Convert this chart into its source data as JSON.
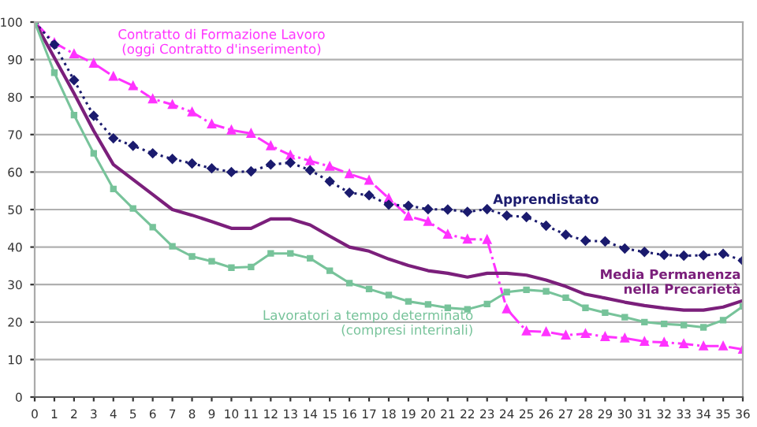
{
  "chart_data": {
    "type": "line",
    "x": [
      0,
      1,
      2,
      3,
      4,
      5,
      6,
      7,
      8,
      9,
      10,
      11,
      12,
      13,
      14,
      15,
      16,
      17,
      18,
      19,
      20,
      21,
      22,
      23,
      24,
      25,
      26,
      27,
      28,
      29,
      30,
      31,
      32,
      33,
      34,
      35,
      36
    ],
    "series": [
      {
        "name": "Contratto di Formazione Lavoro\n(oggi Contratto d'inserimento)",
        "color": "#ff33ff",
        "marker": "triangle",
        "line_style": "dashed",
        "values": [
          100,
          94.5,
          91.5,
          89,
          85.5,
          83,
          79.5,
          78,
          76,
          72.8,
          71.2,
          70.3,
          67,
          64.5,
          63,
          61.5,
          59.5,
          57.8,
          53,
          48.2,
          46.8,
          43.4,
          42.1,
          42,
          23.5,
          17.6,
          17.4,
          16.5,
          16.9,
          16.1,
          15.7,
          14.8,
          14.6,
          14.2,
          13.6,
          13.6,
          12.7
        ]
      },
      {
        "name": "Apprendistato",
        "color": "#1b1b6e",
        "marker": "diamond",
        "line_style": "dotted",
        "values": [
          100,
          94,
          84.5,
          75,
          69,
          67,
          65,
          63.5,
          62.3,
          61,
          60,
          60.2,
          62,
          62.5,
          60.5,
          57.5,
          54.5,
          53.8,
          51.3,
          51,
          50.1,
          50,
          49.4,
          50.1,
          48.4,
          48,
          45.7,
          43.3,
          41.7,
          41.5,
          39.6,
          38.7,
          37.9,
          37.7,
          37.8,
          38.2,
          36.4
        ]
      },
      {
        "name": "Media Permanenza\nnella Precarietà",
        "color": "#7b1f7b",
        "marker": "none",
        "line_style": "solid",
        "values": [
          100,
          90.5,
          81,
          71,
          62,
          58,
          54,
          50,
          48.5,
          46.8,
          45,
          45,
          47.5,
          47.5,
          45.9,
          42.9,
          40,
          38.9,
          36.8,
          35.1,
          33.7,
          33,
          32,
          33,
          33,
          32.5,
          31.2,
          29.5,
          27.4,
          26.4,
          25.3,
          24.4,
          23.7,
          23.2,
          23.2,
          24,
          25.7
        ]
      },
      {
        "name": "Lavoratori a tempo determinato\n(compresi interinali)",
        "color": "#77c39a",
        "marker": "square",
        "line_style": "solid",
        "values": [
          100,
          86.5,
          75.2,
          65,
          55.5,
          50.3,
          45.3,
          40.2,
          37.5,
          36.2,
          34.5,
          34.7,
          38.3,
          38.3,
          37,
          33.7,
          30.4,
          28.8,
          27.2,
          25.5,
          24.7,
          23.8,
          23.4,
          24.8,
          28,
          28.6,
          28.2,
          26.5,
          23.8,
          22.5,
          21.3,
          20,
          19.5,
          19.2,
          18.6,
          20.5,
          24.2
        ]
      }
    ],
    "xlim": [
      0,
      36
    ],
    "xticks": [
      0,
      1,
      2,
      3,
      4,
      5,
      6,
      7,
      8,
      9,
      10,
      11,
      12,
      13,
      14,
      15,
      16,
      17,
      18,
      19,
      20,
      21,
      22,
      23,
      24,
      25,
      26,
      27,
      28,
      29,
      30,
      31,
      32,
      33,
      34,
      35,
      36
    ],
    "ylim": [
      0,
      100
    ],
    "yticks": [
      0,
      10,
      20,
      30,
      40,
      50,
      60,
      70,
      80,
      90,
      100
    ],
    "grid": "y",
    "legend": false
  }
}
